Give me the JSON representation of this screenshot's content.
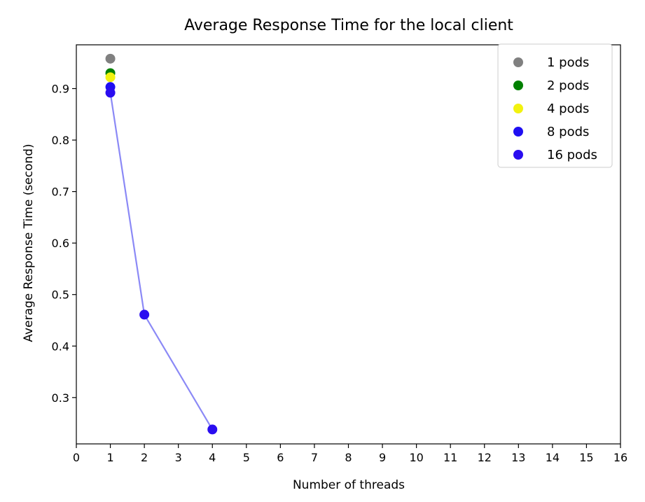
{
  "chart_data": {
    "type": "scatter",
    "title": "Average Response Time for the local client",
    "xlabel": "Number of threads",
    "ylabel": "Average Response Time (second)",
    "xlim": [
      0,
      16
    ],
    "ylim": [
      0.21,
      0.985
    ],
    "x_ticks": [
      0,
      1,
      2,
      3,
      4,
      5,
      6,
      7,
      8,
      9,
      10,
      11,
      12,
      13,
      14,
      15,
      16
    ],
    "y_ticks": [
      0.3,
      0.4,
      0.5,
      0.6,
      0.7,
      0.8,
      0.9
    ],
    "grid": false,
    "legend_position": "top-right",
    "series": [
      {
        "name": "1 pods",
        "color": "#808080",
        "points": [
          [
            1,
            0.958
          ]
        ]
      },
      {
        "name": "2 pods",
        "color": "#008000",
        "points": [
          [
            1,
            0.93
          ]
        ]
      },
      {
        "name": "4 pods",
        "color": "#f2f20f",
        "points": [
          [
            1,
            0.922
          ]
        ]
      },
      {
        "name": "8 pods",
        "color": "#1f0ff2",
        "points": [
          [
            1,
            0.903
          ]
        ]
      },
      {
        "name": "16 pods",
        "color": "#2a0df0",
        "points": [
          [
            1,
            0.892
          ],
          [
            2,
            0.461
          ],
          [
            4,
            0.238
          ]
        ]
      }
    ],
    "line": {
      "color": "#8b89f6",
      "points": [
        [
          1,
          0.892
        ],
        [
          2,
          0.461
        ],
        [
          4,
          0.238
        ]
      ]
    }
  }
}
